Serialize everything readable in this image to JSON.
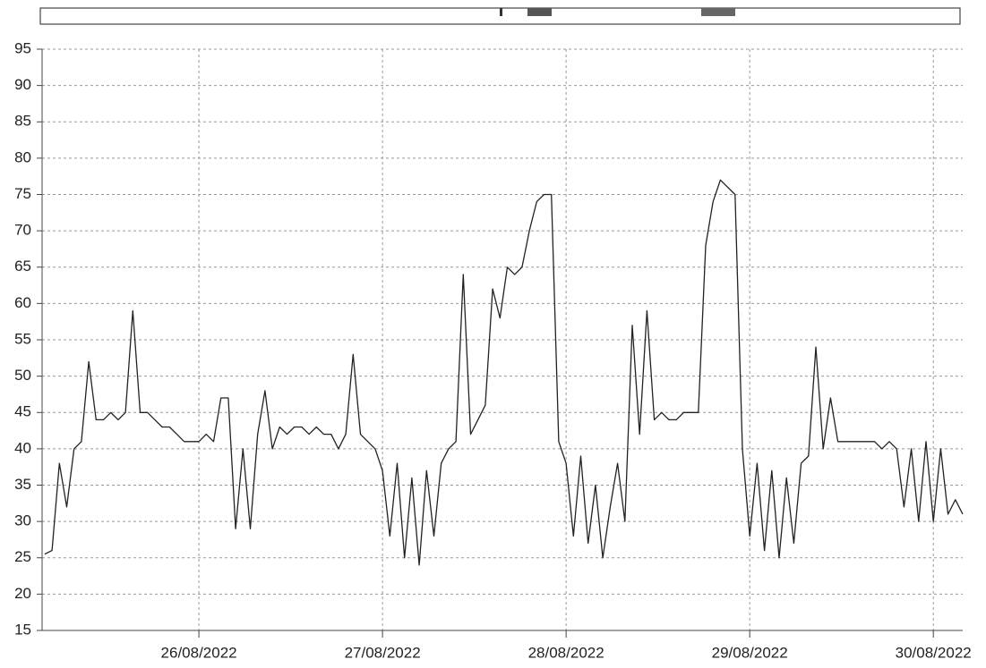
{
  "chart_data": {
    "type": "line",
    "x": [
      25.16,
      25.2,
      25.24,
      25.28,
      25.32,
      25.36,
      25.4,
      25.44,
      25.48,
      25.52,
      25.56,
      25.6,
      25.64,
      25.68,
      25.72,
      25.76,
      25.8,
      25.84,
      25.88,
      25.92,
      25.96,
      26.0,
      26.04,
      26.08,
      26.12,
      26.16,
      26.2,
      26.24,
      26.28,
      26.32,
      26.36,
      26.4,
      26.44,
      26.48,
      26.52,
      26.56,
      26.6,
      26.64,
      26.68,
      26.72,
      26.76,
      26.8,
      26.84,
      26.88,
      26.92,
      26.96,
      27.0,
      27.04,
      27.08,
      27.12,
      27.16,
      27.2,
      27.24,
      27.28,
      27.32,
      27.36,
      27.4,
      27.44,
      27.48,
      27.52,
      27.56,
      27.6,
      27.64,
      27.68,
      27.72,
      27.76,
      27.8,
      27.84,
      27.88,
      27.92,
      27.96,
      28.0,
      28.04,
      28.08,
      28.12,
      28.16,
      28.2,
      28.24,
      28.28,
      28.32,
      28.36,
      28.4,
      28.44,
      28.48,
      28.52,
      28.56,
      28.6,
      28.64,
      28.68,
      28.72,
      28.76,
      28.8,
      28.84,
      28.88,
      28.92,
      28.96,
      29.0,
      29.04,
      29.08,
      29.12,
      29.16,
      29.2,
      29.24,
      29.28,
      29.32,
      29.36,
      29.4,
      29.44,
      29.48,
      29.52,
      29.56,
      29.6,
      29.64,
      29.68,
      29.72,
      29.76,
      29.8,
      29.84,
      29.88,
      29.92,
      29.96,
      30.0,
      30.04,
      30.08,
      30.12,
      30.16
    ],
    "values": [
      25.5,
      26,
      38,
      32,
      40,
      41,
      52,
      44,
      44,
      45,
      44,
      45,
      59,
      45,
      45,
      44,
      43,
      43,
      42,
      41,
      41,
      41,
      42,
      41,
      47,
      47,
      29,
      40,
      29,
      42,
      48,
      40,
      43,
      42,
      43,
      43,
      42,
      43,
      42,
      42,
      40,
      42,
      53,
      42,
      41,
      40,
      37,
      28,
      38,
      25,
      36,
      24,
      37,
      28,
      38,
      40,
      41,
      64,
      42,
      44,
      46,
      62,
      58,
      65,
      64,
      65,
      70,
      74,
      75,
      75,
      41,
      38,
      28,
      39,
      27,
      35,
      25,
      32,
      38,
      30,
      57,
      42,
      59,
      44,
      45,
      44,
      44,
      45,
      45,
      45,
      68,
      74,
      77,
      76,
      75,
      40,
      28,
      38,
      26,
      37,
      25,
      36,
      27,
      38,
      39,
      54,
      40,
      47,
      41,
      41,
      41,
      41,
      41,
      41,
      40,
      41,
      40,
      32,
      40,
      30,
      41,
      30,
      40,
      31,
      33,
      31
    ],
    "color": "#222222",
    "xlim": [
      25.146,
      30.16
    ],
    "xticks": [
      {
        "value": 26,
        "label": "26/08/2022"
      },
      {
        "value": 27,
        "label": "27/08/2022"
      },
      {
        "value": 28,
        "label": "28/08/2022"
      },
      {
        "value": 29,
        "label": "29/08/2022"
      },
      {
        "value": 30,
        "label": "30/08/2022"
      }
    ],
    "ylim": [
      15,
      95
    ],
    "yticks": [
      15,
      20,
      25,
      30,
      35,
      40,
      45,
      50,
      55,
      60,
      65,
      70,
      75,
      80,
      85,
      90,
      95
    ],
    "grid": true
  }
}
